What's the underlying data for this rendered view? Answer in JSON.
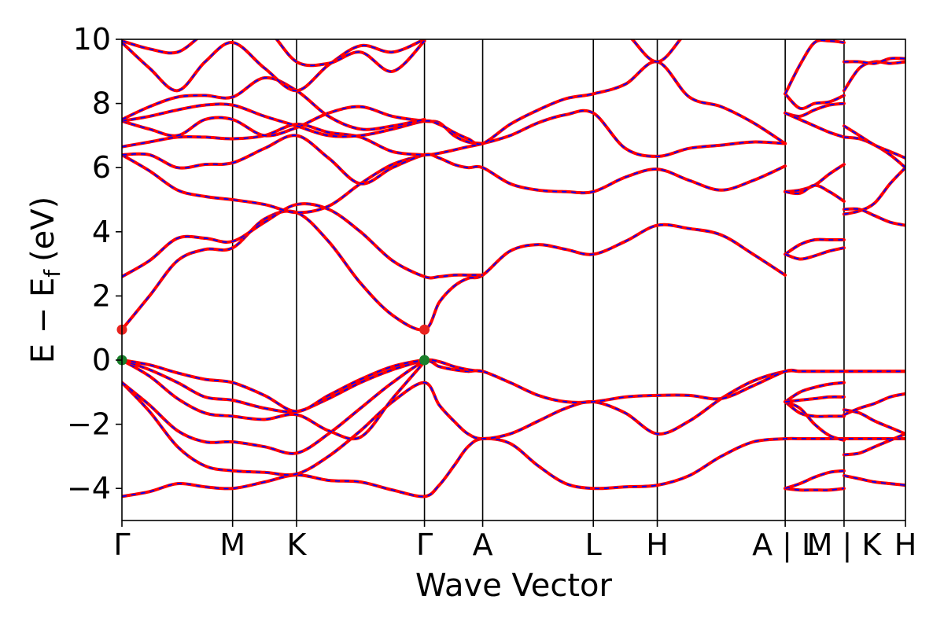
{
  "chart_data": {
    "type": "line",
    "title": "",
    "xlabel": "Wave Vector",
    "ylabel": "E − E",
    "ylabel_subscript": "f",
    "ylabel_unit": "(eV)",
    "ylim": [
      -5,
      10
    ],
    "yticks": [
      -4,
      -2,
      0,
      2,
      4,
      6,
      8,
      10
    ],
    "xlim": [
      0,
      12.25
    ],
    "kpoints": [
      {
        "label": "Γ",
        "x": 0
      },
      {
        "label": "M",
        "x": 1.73
      },
      {
        "label": "K",
        "x": 2.73
      },
      {
        "label": "Γ",
        "x": 4.73
      },
      {
        "label": "A",
        "x": 5.64
      },
      {
        "label": "L",
        "x": 7.37
      },
      {
        "label": "H",
        "x": 8.37
      },
      {
        "label": "A | L",
        "x": 10.37
      },
      {
        "label": "M | K",
        "x": 11.29
      },
      {
        "label": "H",
        "x": 12.25
      }
    ],
    "segments": [
      {
        "start": 0,
        "end": 1.73
      },
      {
        "start": 1.73,
        "end": 2.73
      },
      {
        "start": 2.73,
        "end": 4.73
      },
      {
        "start": 4.73,
        "end": 5.64
      },
      {
        "start": 5.64,
        "end": 7.37
      },
      {
        "start": 7.37,
        "end": 8.37
      },
      {
        "start": 8.37,
        "end": 10.37
      },
      {
        "start": 10.37,
        "end": 11.29
      },
      {
        "start": 11.29,
        "end": 12.25
      }
    ],
    "bands": [
      {
        "x": [
          0,
          0.43,
          0.87,
          1.3,
          1.73,
          2.23,
          2.73,
          3.23,
          3.73,
          4.23,
          4.73,
          4.96,
          5.19,
          5.41,
          5.64,
          6.07,
          6.51,
          6.94,
          7.37,
          7.87,
          8.37,
          8.87,
          9.37,
          9.87,
          10.37,
          10.6,
          10.83,
          11.06,
          11.29,
          11.53,
          11.77,
          12.01,
          12.25
        ],
        "y": [
          -4.25,
          -4.1,
          -3.85,
          -3.95,
          -4.0,
          -3.8,
          -3.58,
          -3.75,
          -3.8,
          -4.05,
          -4.25,
          -3.9,
          -3.3,
          -2.7,
          -2.45,
          -2.6,
          -3.3,
          -3.85,
          -4.0,
          -3.95,
          -3.9,
          -3.6,
          -3.0,
          -2.55,
          -2.45,
          -2.45,
          -2.45,
          -2.45,
          -2.45,
          -2.45,
          -2.45,
          -2.45,
          -2.45
        ]
      },
      {
        "x": [
          0,
          0.43,
          0.87,
          1.3,
          1.73,
          2.23,
          2.73,
          3.23,
          3.73,
          4.23,
          4.73,
          4.96,
          5.19,
          5.41,
          5.64,
          6.07,
          6.51,
          6.94,
          7.37,
          7.87,
          8.37,
          8.87,
          9.37,
          9.87,
          10.37,
          10.6,
          10.83,
          11.06,
          11.29,
          11.53,
          11.77,
          12.01,
          12.25
        ],
        "y": [
          -0.7,
          -1.6,
          -2.7,
          -3.3,
          -3.45,
          -3.5,
          -3.55,
          -3.0,
          -2.2,
          -1.3,
          -0.7,
          -1.4,
          -1.9,
          -2.3,
          -2.45,
          -2.3,
          -1.9,
          -1.5,
          -1.3,
          -1.65,
          -2.3,
          -1.9,
          -1.2,
          -0.65,
          -0.35,
          -0.35,
          -0.35,
          -0.35,
          -0.35,
          -0.35,
          -0.35,
          -0.35,
          -0.35
        ]
      },
      {
        "x": [
          0,
          0.43,
          0.87,
          1.3,
          1.73,
          2.23,
          2.73,
          3.23,
          3.73,
          4.23,
          4.73,
          4.96,
          5.19,
          5.41,
          5.64,
          6.07,
          6.51,
          6.94,
          7.37,
          7.87,
          8.37,
          8.87,
          9.37,
          9.87,
          10.37,
          10.6,
          10.83,
          11.06,
          11.29,
          11.53,
          11.77,
          12.01,
          12.25
        ],
        "y": [
          -0.7,
          -1.4,
          -2.2,
          -2.55,
          -2.55,
          -2.7,
          -2.9,
          -2.3,
          -1.5,
          -0.7,
          -0.05,
          -0.2,
          -0.3,
          -0.35,
          -0.35,
          -0.7,
          -1.1,
          -1.3,
          -1.3,
          -1.15,
          -1.1,
          -1.1,
          -1.2,
          -0.8,
          -0.35,
          -0.35,
          -0.35,
          -0.35,
          -0.35,
          -0.35,
          -0.35,
          -0.35,
          -0.35
        ]
      },
      {
        "x": [
          0,
          0.43,
          0.87,
          1.3,
          1.73,
          2.23,
          2.73,
          3.23,
          3.73,
          4.23,
          4.73
        ],
        "y": [
          0.0,
          -0.5,
          -1.2,
          -1.65,
          -1.75,
          -1.85,
          -1.7,
          -2.2,
          -2.4,
          -1.2,
          -0.05
        ]
      },
      {
        "x": [
          0,
          0.43,
          0.87,
          1.3,
          1.73,
          2.23,
          2.73,
          3.23,
          3.73,
          4.23,
          4.73
        ],
        "y": [
          0.0,
          -0.3,
          -0.7,
          -1.15,
          -1.25,
          -1.5,
          -1.6,
          -1.2,
          -0.7,
          -0.3,
          0.0
        ]
      },
      {
        "x": [
          0,
          0.43,
          0.87,
          1.3,
          1.73,
          2.23,
          2.73,
          3.23,
          3.73,
          4.23,
          4.73,
          4.96,
          5.19,
          5.41,
          5.64
        ],
        "y": [
          0.0,
          -0.15,
          -0.4,
          -0.6,
          -0.7,
          -1.1,
          -1.6,
          -1.1,
          -0.6,
          -0.2,
          0.0,
          -0.05,
          -0.2,
          -0.3,
          -0.35
        ]
      },
      {
        "x": [
          0,
          0.43,
          0.87,
          1.3,
          1.73,
          2.23,
          2.73,
          3.23,
          3.73,
          4.23,
          4.73,
          4.96,
          5.19,
          5.41,
          5.64,
          6.07,
          6.51,
          6.94,
          7.37,
          7.87,
          8.37,
          8.87,
          9.37,
          9.87,
          10.37
        ],
        "y": [
          0.95,
          2.0,
          3.1,
          3.45,
          3.5,
          4.4,
          4.6,
          3.7,
          2.4,
          1.4,
          0.95,
          1.8,
          2.3,
          2.55,
          2.65,
          3.4,
          3.6,
          3.45,
          3.3,
          3.7,
          4.2,
          4.1,
          3.9,
          3.3,
          2.65
        ]
      },
      {
        "x": [
          0,
          0.43,
          0.87,
          1.3,
          1.73,
          2.23,
          2.73,
          3.23,
          3.73,
          4.23,
          4.73,
          4.96,
          5.19,
          5.41,
          5.64
        ],
        "y": [
          2.6,
          3.1,
          3.8,
          3.8,
          3.7,
          4.3,
          4.85,
          4.7,
          4.0,
          3.1,
          2.6,
          2.6,
          2.65,
          2.65,
          2.65
        ]
      },
      {
        "x": [
          0,
          0.43,
          0.87,
          1.3,
          1.73,
          2.23,
          2.73,
          3.23,
          3.73,
          4.23,
          4.73
        ],
        "y": [
          6.4,
          5.9,
          5.3,
          5.1,
          5.0,
          4.85,
          4.6,
          4.8,
          5.5,
          6.1,
          6.4
        ]
      },
      {
        "x": [
          0,
          0.43,
          0.87,
          1.3,
          1.73,
          2.23,
          2.73,
          3.23,
          3.73,
          4.23,
          4.73,
          4.96,
          5.19,
          5.41,
          5.64,
          6.07,
          6.51,
          6.94,
          7.37,
          7.87,
          8.37,
          8.87,
          9.37,
          9.87,
          10.37
        ],
        "y": [
          6.4,
          6.4,
          6.0,
          6.1,
          6.15,
          6.6,
          7.0,
          6.3,
          5.5,
          6.0,
          6.4,
          6.3,
          6.1,
          6.0,
          6.0,
          5.5,
          5.3,
          5.25,
          5.25,
          5.7,
          5.95,
          5.6,
          5.3,
          5.6,
          6.05
        ]
      },
      {
        "x": [
          0,
          0.43,
          0.87,
          1.3,
          1.73,
          2.23,
          2.73,
          3.23,
          3.73,
          4.23,
          4.73,
          4.96,
          5.19,
          5.41,
          5.64,
          6.07,
          6.51,
          6.94,
          7.37,
          7.87,
          8.37,
          8.87,
          9.37,
          9.87,
          10.37
        ],
        "y": [
          6.65,
          6.8,
          6.95,
          6.95,
          6.9,
          7.0,
          7.35,
          7.1,
          6.95,
          6.5,
          6.4,
          6.45,
          6.55,
          6.65,
          6.75,
          7.0,
          7.4,
          7.65,
          7.7,
          6.6,
          6.35,
          6.6,
          6.7,
          6.8,
          6.75
        ]
      },
      {
        "x": [
          0,
          0.43,
          0.87,
          1.3,
          1.73,
          2.23,
          2.73,
          3.23,
          3.73,
          4.23,
          4.73,
          4.96,
          5.19,
          5.41,
          5.64
        ],
        "y": [
          7.45,
          7.2,
          7.0,
          7.5,
          7.5,
          7.0,
          7.25,
          7.7,
          7.9,
          7.6,
          7.45,
          7.4,
          7.0,
          6.8,
          6.75
        ]
      },
      {
        "x": [
          0,
          0.43,
          0.87,
          1.3,
          1.73,
          2.23,
          2.73,
          3.23,
          3.73,
          4.23,
          4.73,
          4.96,
          5.19,
          5.41,
          5.64,
          6.07,
          6.51,
          6.94,
          7.37,
          7.87,
          8.37,
          8.87,
          9.37,
          9.87,
          10.37
        ],
        "y": [
          7.45,
          7.6,
          7.8,
          7.95,
          7.95,
          7.6,
          7.3,
          7.0,
          7.0,
          7.2,
          7.45,
          7.35,
          7.1,
          6.9,
          6.75,
          7.35,
          7.8,
          8.15,
          8.3,
          8.6,
          9.3,
          8.2,
          7.9,
          7.4,
          6.75
        ]
      },
      {
        "x": [
          0,
          0.43,
          0.87,
          1.3,
          1.73,
          2.23,
          2.73,
          3.23,
          3.73,
          4.23,
          4.73
        ],
        "y": [
          7.5,
          7.9,
          8.2,
          8.25,
          8.2,
          8.8,
          8.4,
          7.6,
          7.2,
          7.3,
          7.5
        ]
      },
      {
        "x": [
          0,
          0.43,
          0.87,
          1.3,
          1.73,
          2.23,
          2.73,
          3.23,
          3.73,
          4.23,
          4.73
        ],
        "y": [
          9.9,
          9.1,
          8.4,
          9.3,
          9.9,
          9.1,
          8.4,
          9.2,
          9.8,
          9.6,
          10.0
        ]
      },
      {
        "x": [
          0,
          0.43,
          0.87,
          1.3,
          1.73,
          2.23,
          2.73,
          3.23,
          3.73,
          4.23,
          4.73
        ],
        "y": [
          9.95,
          9.7,
          9.6,
          10.2,
          10.6,
          10.4,
          9.3,
          9.25,
          9.6,
          9.0,
          9.95
        ]
      },
      {
        "x": [
          7.37,
          7.87,
          8.37,
          8.87,
          9.37
        ],
        "y": [
          10.6,
          10.2,
          9.3,
          10.3,
          10.8
        ]
      },
      {
        "x": [
          10.37,
          10.6,
          10.83,
          11.06,
          11.29
        ],
        "y": [
          -4.0,
          -4.05,
          -4.05,
          -4.05,
          -4.0
        ]
      },
      {
        "x": [
          10.37,
          10.6,
          10.83,
          11.06,
          11.29
        ],
        "y": [
          -4.0,
          -3.85,
          -3.65,
          -3.5,
          -3.45
        ]
      },
      {
        "x": [
          10.37,
          10.6,
          10.83,
          11.06,
          11.29
        ],
        "y": [
          -1.3,
          -1.65,
          -1.75,
          -1.75,
          -1.75
        ]
      },
      {
        "x": [
          10.37,
          10.6,
          10.83,
          11.06,
          11.29
        ],
        "y": [
          -1.3,
          -1.5,
          -2.0,
          -2.35,
          -2.5
        ]
      },
      {
        "x": [
          10.37,
          10.6,
          10.83,
          11.06,
          11.29
        ],
        "y": [
          -1.3,
          -1.0,
          -0.85,
          -0.75,
          -0.7
        ]
      },
      {
        "x": [
          10.37,
          10.6,
          10.83,
          11.06,
          11.29
        ],
        "y": [
          -1.3,
          -1.25,
          -1.2,
          -1.15,
          -1.15
        ]
      },
      {
        "x": [
          10.37,
          10.6,
          10.83,
          11.06,
          11.29
        ],
        "y": [
          3.3,
          3.6,
          3.75,
          3.75,
          3.75
        ]
      },
      {
        "x": [
          10.37,
          10.6,
          10.83,
          11.06,
          11.29
        ],
        "y": [
          3.3,
          3.15,
          3.25,
          3.4,
          3.5
        ]
      },
      {
        "x": [
          10.37,
          10.6,
          10.83,
          11.06,
          11.29
        ],
        "y": [
          5.25,
          5.3,
          5.45,
          5.8,
          6.1
        ]
      },
      {
        "x": [
          10.37,
          10.6,
          10.83,
          11.06,
          11.29
        ],
        "y": [
          5.25,
          5.2,
          5.45,
          5.25,
          4.95
        ]
      },
      {
        "x": [
          10.37,
          10.6,
          10.83,
          11.06,
          11.29
        ],
        "y": [
          7.7,
          7.6,
          7.8,
          7.95,
          8.0
        ]
      },
      {
        "x": [
          10.37,
          10.6,
          10.83,
          11.06,
          11.29
        ],
        "y": [
          7.7,
          7.5,
          7.3,
          7.1,
          6.95
        ]
      },
      {
        "x": [
          10.37,
          10.6,
          10.83,
          11.06,
          11.29
        ],
        "y": [
          8.3,
          7.85,
          8.0,
          8.05,
          8.25
        ]
      },
      {
        "x": [
          10.37,
          10.6,
          10.83,
          11.06,
          11.29
        ],
        "y": [
          8.3,
          9.2,
          9.9,
          9.95,
          9.9
        ]
      },
      {
        "x": [
          11.29,
          11.53,
          11.77,
          12.01,
          12.25
        ],
        "y": [
          -3.6,
          -3.7,
          -3.8,
          -3.85,
          -3.9
        ]
      },
      {
        "x": [
          11.29,
          11.53,
          11.77,
          12.01,
          12.25
        ],
        "y": [
          -2.95,
          -2.9,
          -2.7,
          -2.5,
          -2.3
        ]
      },
      {
        "x": [
          11.29,
          11.53,
          11.77,
          12.01,
          12.25
        ],
        "y": [
          -1.55,
          -1.65,
          -1.9,
          -2.1,
          -2.3
        ]
      },
      {
        "x": [
          11.29,
          11.53,
          11.77,
          12.01,
          12.25
        ],
        "y": [
          -1.7,
          -1.5,
          -1.35,
          -1.15,
          -1.05
        ]
      },
      {
        "x": [
          11.29,
          11.53,
          11.77,
          12.01,
          12.25
        ],
        "y": [
          4.55,
          4.65,
          4.9,
          5.5,
          6.0
        ]
      },
      {
        "x": [
          11.29,
          11.53,
          11.77,
          12.01,
          12.25
        ],
        "y": [
          4.7,
          4.7,
          4.5,
          4.3,
          4.2
        ]
      },
      {
        "x": [
          11.29,
          11.53,
          11.77,
          12.01,
          12.25
        ],
        "y": [
          6.95,
          6.9,
          6.7,
          6.4,
          6.0
        ]
      },
      {
        "x": [
          11.29,
          11.53,
          11.77,
          12.01,
          12.25
        ],
        "y": [
          7.3,
          7.0,
          6.7,
          6.5,
          6.3
        ]
      },
      {
        "x": [
          11.29,
          11.53,
          11.77,
          12.01,
          12.25
        ],
        "y": [
          8.4,
          9.1,
          9.3,
          9.25,
          9.3
        ]
      },
      {
        "x": [
          11.29,
          11.53,
          11.77,
          12.01,
          12.25
        ],
        "y": [
          9.3,
          9.3,
          9.25,
          9.4,
          9.4
        ]
      }
    ],
    "markers": [
      {
        "x": 0,
        "y": 0.95,
        "color": "#e8231f"
      },
      {
        "x": 4.73,
        "y": 0.95,
        "color": "#e8231f"
      },
      {
        "x": 0,
        "y": 0.0,
        "color": "#1a7f2a"
      },
      {
        "x": 4.73,
        "y": 0.0,
        "color": "#1a7f2a"
      }
    ],
    "line_color_primary": "#ff0000",
    "line_color_secondary": "#0000ff",
    "grid": false
  }
}
